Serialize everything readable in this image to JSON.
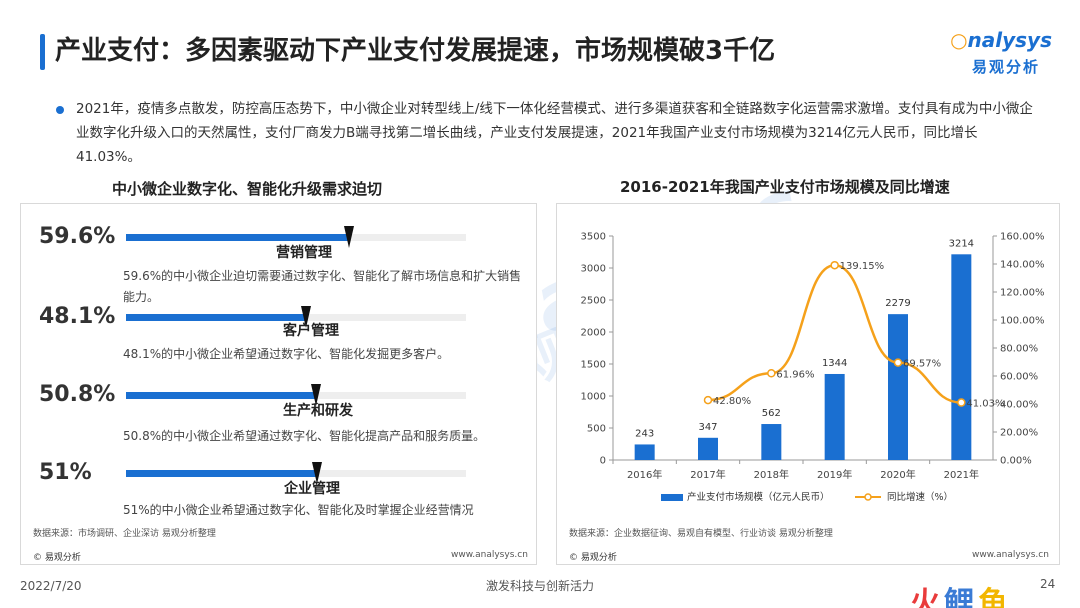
{
  "header": {
    "title": "产业支付：多因素驱动下产业支付发展提速，市场规模破3千亿",
    "logo_en_prefix": "",
    "logo_en_o": "○",
    "logo_en_rest": "nalysys",
    "logo_cn": "易观分析"
  },
  "bullet": "2021年，疫情多点散发，防控高压态势下，中小微企业对转型线上/线下一体化经营模式、进行多渠道获客和全链路数字化运营需求激增。支付具有成为中小微企业数字化升级入口的天然属性，支付厂商发力B端寻找第二增长曲线，产业支付发展提速，2021年我国产业支付市场规模为3214亿元人民币，同比增长41.03%。",
  "left_panel": {
    "title": "中小微企业数字化、智能化升级需求迫切",
    "items": [
      {
        "pct": "59.6%",
        "value": 59.6,
        "name": "营销管理",
        "desc": "59.6%的中小微企业迫切需要通过数字化、智能化了解市场信息和扩大销售能力。"
      },
      {
        "pct": "48.1%",
        "value": 48.1,
        "name": "客户管理",
        "desc": "48.1%的中小微企业希望通过数字化、智能化发掘更多客户。"
      },
      {
        "pct": "50.8%",
        "value": 50.8,
        "name": "生产和研发",
        "desc": "50.8%的中小微企业希望通过数字化、智能化提高产品和服务质量。"
      },
      {
        "pct": "51%",
        "value": 51,
        "name": "企业管理",
        "desc": "51%的中小微企业希望通过数字化、智能化及时掌握企业经营情况"
      }
    ],
    "source": "数据来源：市场调研、企业深访 易观分析整理",
    "copyright": "© 易观分析",
    "website": "www.analysys.cn"
  },
  "right_panel": {
    "title": "2016-2021年我国产业支付市场规模及同比增速",
    "source": "数据来源：企业数据征询、易观自有模型、行业访谈 易观分析整理",
    "copyright": "© 易观分析",
    "website": "www.analysys.cn"
  },
  "chart_data": {
    "type": "bar",
    "title": "2016-2021年我国产业支付市场规模及同比增速",
    "categories": [
      "2016年",
      "2017年",
      "2018年",
      "2019年",
      "2020年",
      "2021年"
    ],
    "series": [
      {
        "name": "产业支付市场规模（亿元人民币）",
        "type": "bar",
        "axis": "left",
        "values": [
          243,
          347,
          562,
          1344,
          2279,
          3214
        ],
        "labels": [
          "243",
          "347",
          "562",
          "1344",
          "2279",
          "3214"
        ]
      },
      {
        "name": "同比增速（%）",
        "type": "line",
        "axis": "right",
        "values": [
          null,
          42.8,
          61.96,
          139.15,
          69.57,
          41.03
        ],
        "labels": [
          "",
          "42.80%",
          "61.96%",
          "139.15%",
          "69.57%",
          "41.03%"
        ]
      }
    ],
    "y_left": {
      "min": 0,
      "max": 3500,
      "ticks": [
        "0",
        "500",
        "1000",
        "1500",
        "2000",
        "2500",
        "3000",
        "3500"
      ]
    },
    "y_right": {
      "min": 0,
      "max": 160,
      "ticks": [
        "0.00%",
        "20.00%",
        "40.00%",
        "60.00%",
        "80.00%",
        "100.00%",
        "120.00%",
        "140.00%",
        "160.00%"
      ]
    },
    "legend_position": "bottom",
    "grid": false,
    "colors": {
      "bar": "#1a6fd1",
      "line": "#f5a11b"
    }
  },
  "footer": {
    "date": "2022/7/20",
    "slogan": "激发科技与创新活力",
    "page": "24",
    "brand_1": "火",
    "brand_2": "鲤",
    "brand_3": "鱼"
  },
  "watermark": {
    "en": "analysys",
    "cn": "易观分析"
  }
}
